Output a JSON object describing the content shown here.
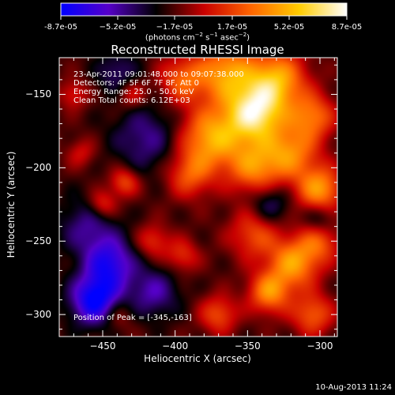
{
  "colorbar": {
    "ticks": [
      "-8.7e-05",
      "−5.2e-05",
      "−1.7e-05",
      "1.7e-05",
      "5.2e-05",
      "8.7e-05"
    ],
    "unit_prefix": "(photons cm",
    "unit_exp1": "−2",
    "unit_mid": " s",
    "unit_exp2": "−1",
    "unit_mid2": " asec",
    "unit_exp3": "−2",
    "unit_suffix": ")"
  },
  "title": "Reconstructed RHESSI Image",
  "info_lines": [
    "23-Apr-2011 09:01:48.000 to 09:07:38.000",
    "Detectors: 4F 5F 6F 7F 8F, Att 0",
    "Energy Range: 25.0 - 50.0 keV",
    "Clean    Total counts: 6.12E+03"
  ],
  "peak_label": "Position of Peak = [-345,-163]",
  "xlabel": "Heliocentric X (arcsec)",
  "ylabel": "Heliocentric Y (arcsec)",
  "timestamp": "10-Aug-2013 11:24",
  "chart_data": {
    "type": "heatmap",
    "title": "Reconstructed RHESSI Image",
    "xlabel": "Heliocentric X (arcsec)",
    "ylabel": "Heliocentric Y (arcsec)",
    "xlim": [
      -480,
      -288
    ],
    "ylim": [
      -315,
      -125
    ],
    "xticks": [
      -450,
      -400,
      -350,
      -300
    ],
    "yticks": [
      -150,
      -200,
      -250,
      -300
    ],
    "xtick_labels": [
      "−450",
      "−400",
      "−350",
      "−300"
    ],
    "ytick_labels": [
      "−150",
      "−200",
      "−250",
      "−300"
    ],
    "colorbar_range": [
      -8.7e-05,
      8.7e-05
    ],
    "colormap": [
      "#0000ff",
      "#5500c8",
      "#000000",
      "#c80000",
      "#ff6600",
      "#ffcc00",
      "#ffffff"
    ],
    "peak_position": [
      -345,
      -163
    ],
    "blobs": [
      {
        "x": -345,
        "y": -163,
        "v": 1.0,
        "s": 14
      },
      {
        "x": -330,
        "y": -140,
        "v": 0.75,
        "s": 14
      },
      {
        "x": -365,
        "y": -135,
        "v": 0.7,
        "s": 14
      },
      {
        "x": -395,
        "y": -140,
        "v": 0.5,
        "s": 11
      },
      {
        "x": -375,
        "y": -180,
        "v": 0.75,
        "s": 15
      },
      {
        "x": -345,
        "y": -200,
        "v": 0.6,
        "s": 13
      },
      {
        "x": -320,
        "y": -190,
        "v": 0.6,
        "s": 13
      },
      {
        "x": -300,
        "y": -215,
        "v": 0.7,
        "s": 11
      },
      {
        "x": -305,
        "y": -165,
        "v": 0.55,
        "s": 11
      },
      {
        "x": -390,
        "y": -205,
        "v": 0.45,
        "s": 11
      },
      {
        "x": -345,
        "y": -245,
        "v": 0.45,
        "s": 12
      },
      {
        "x": -318,
        "y": -265,
        "v": 0.7,
        "s": 12
      },
      {
        "x": -300,
        "y": -250,
        "v": 0.45,
        "s": 10
      },
      {
        "x": -335,
        "y": -285,
        "v": 0.65,
        "s": 10
      },
      {
        "x": -305,
        "y": -300,
        "v": 0.5,
        "s": 10
      },
      {
        "x": -370,
        "y": -300,
        "v": 0.45,
        "s": 9
      },
      {
        "x": -395,
        "y": -260,
        "v": 0.35,
        "s": 8
      },
      {
        "x": -435,
        "y": -210,
        "v": 0.45,
        "s": 7
      },
      {
        "x": -450,
        "y": -225,
        "v": 0.4,
        "s": 7
      },
      {
        "x": -415,
        "y": -250,
        "v": 0.35,
        "s": 8
      },
      {
        "x": -430,
        "y": -150,
        "v": 0.3,
        "s": 7
      },
      {
        "x": -470,
        "y": -150,
        "v": 0.3,
        "s": 7
      },
      {
        "x": -465,
        "y": -190,
        "v": 0.25,
        "s": 7
      },
      {
        "x": -440,
        "y": -300,
        "v": 0.25,
        "s": 8
      },
      {
        "x": -455,
        "y": -290,
        "v": -0.8,
        "s": 12
      },
      {
        "x": -445,
        "y": -265,
        "v": -0.6,
        "s": 12
      },
      {
        "x": -420,
        "y": -180,
        "v": -0.35,
        "s": 16
      },
      {
        "x": -460,
        "y": -240,
        "v": -0.35,
        "s": 14
      },
      {
        "x": -335,
        "y": -225,
        "v": -0.35,
        "s": 10
      },
      {
        "x": -415,
        "y": -285,
        "v": -0.4,
        "s": 12
      },
      {
        "x": -300,
        "y": -235,
        "v": -0.3,
        "s": 8
      },
      {
        "x": -440,
        "y": -135,
        "v": -0.3,
        "s": 10
      }
    ]
  }
}
